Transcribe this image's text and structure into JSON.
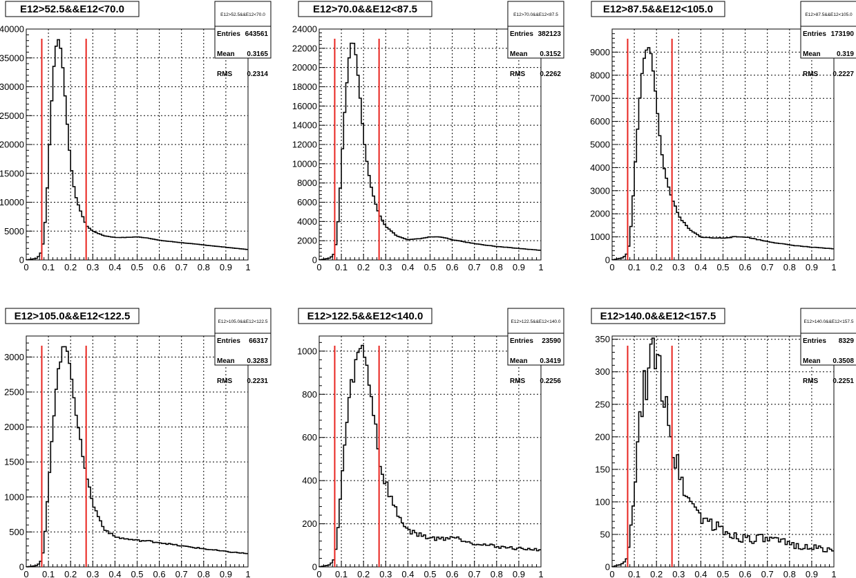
{
  "chart_data": [
    {
      "type": "histogram",
      "title": "E12>52.5&&E12<70.0",
      "stats": {
        "name": "E12>52.5&&E12<70.0",
        "entries_label": "Entries",
        "entries": "643561",
        "mean_label": "Mean",
        "mean": "0.3165",
        "rms_label": "RMS",
        "rms": "0.2314"
      },
      "xlim": [
        0,
        1
      ],
      "ylim": [
        0,
        40000
      ],
      "xticks": [
        "0",
        "0.1",
        "0.2",
        "0.3",
        "0.4",
        "0.5",
        "0.6",
        "0.7",
        "0.8",
        "0.9",
        "1"
      ],
      "yticks": [
        0,
        5000,
        10000,
        15000,
        20000,
        25000,
        30000,
        35000,
        40000
      ],
      "ytick_labels": [
        "0",
        "5000",
        "10000",
        "15000",
        "20000",
        "25000",
        "30000",
        "35000",
        "40000"
      ],
      "cut_lines_x": [
        0.07,
        0.27
      ],
      "grid": true,
      "keypoints": [
        [
          0.0,
          0
        ],
        [
          0.05,
          300
        ],
        [
          0.07,
          1500
        ],
        [
          0.08,
          4000
        ],
        [
          0.09,
          9000
        ],
        [
          0.1,
          16000
        ],
        [
          0.11,
          24000
        ],
        [
          0.12,
          31000
        ],
        [
          0.13,
          36000
        ],
        [
          0.14,
          38300
        ],
        [
          0.15,
          38000
        ],
        [
          0.16,
          35500
        ],
        [
          0.17,
          31000
        ],
        [
          0.18,
          26000
        ],
        [
          0.19,
          21000
        ],
        [
          0.2,
          17000
        ],
        [
          0.21,
          14000
        ],
        [
          0.22,
          11500
        ],
        [
          0.23,
          10000
        ],
        [
          0.25,
          8000
        ],
        [
          0.27,
          6000
        ],
        [
          0.3,
          5000
        ],
        [
          0.35,
          4200
        ],
        [
          0.4,
          3900
        ],
        [
          0.45,
          3900
        ],
        [
          0.5,
          4000
        ],
        [
          0.55,
          3800
        ],
        [
          0.6,
          3400
        ],
        [
          0.7,
          3000
        ],
        [
          0.8,
          2600
        ],
        [
          0.9,
          2200
        ],
        [
          1.0,
          1800
        ]
      ]
    },
    {
      "type": "histogram",
      "title": "E12>70.0&&E12<87.5",
      "stats": {
        "name": "E12>70.0&&E12<87.5",
        "entries_label": "Entries",
        "entries": "382123",
        "mean_label": "Mean",
        "mean": "0.3152",
        "rms_label": "RMS",
        "rms": "0.2262"
      },
      "xlim": [
        0,
        1
      ],
      "ylim": [
        0,
        24000
      ],
      "xticks": [
        "0",
        "0.1",
        "0.2",
        "0.3",
        "0.4",
        "0.5",
        "0.6",
        "0.7",
        "0.8",
        "0.9",
        "1"
      ],
      "yticks": [
        0,
        2000,
        4000,
        6000,
        8000,
        10000,
        12000,
        14000,
        16000,
        18000,
        20000,
        22000,
        24000
      ],
      "ytick_labels": [
        "0",
        "2000",
        "4000",
        "6000",
        "8000",
        "10000",
        "12000",
        "14000",
        "16000",
        "18000",
        "20000",
        "22000",
        "24000"
      ],
      "cut_lines_x": [
        0.07,
        0.27
      ],
      "grid": true,
      "keypoints": [
        [
          0.0,
          0
        ],
        [
          0.05,
          200
        ],
        [
          0.07,
          700
        ],
        [
          0.08,
          2500
        ],
        [
          0.09,
          5500
        ],
        [
          0.1,
          9500
        ],
        [
          0.11,
          13500
        ],
        [
          0.12,
          17000
        ],
        [
          0.13,
          20000
        ],
        [
          0.14,
          22000
        ],
        [
          0.15,
          23000
        ],
        [
          0.16,
          22200
        ],
        [
          0.17,
          20500
        ],
        [
          0.18,
          18000
        ],
        [
          0.19,
          15500
        ],
        [
          0.2,
          13000
        ],
        [
          0.21,
          11000
        ],
        [
          0.22,
          9500
        ],
        [
          0.23,
          8000
        ],
        [
          0.25,
          6200
        ],
        [
          0.27,
          4800
        ],
        [
          0.3,
          3500
        ],
        [
          0.35,
          2500
        ],
        [
          0.4,
          2100
        ],
        [
          0.45,
          2200
        ],
        [
          0.5,
          2400
        ],
        [
          0.55,
          2400
        ],
        [
          0.6,
          2100
        ],
        [
          0.7,
          1700
        ],
        [
          0.8,
          1400
        ],
        [
          0.9,
          1200
        ],
        [
          1.0,
          1000
        ]
      ]
    },
    {
      "type": "histogram",
      "title": "E12>87.5&&E12<105.0",
      "stats": {
        "name": "E12>87.5&&E12<105.0",
        "entries_label": "Entries",
        "entries": "173190",
        "mean_label": "Mean",
        "mean": "0.319",
        "rms_label": "RMS",
        "rms": "0.2227"
      },
      "xlim": [
        0,
        1
      ],
      "ylim": [
        0,
        10000
      ],
      "xticks": [
        "0",
        "0.1",
        "0.2",
        "0.3",
        "0.4",
        "0.5",
        "0.6",
        "0.7",
        "0.8",
        "0.9",
        "1"
      ],
      "yticks": [
        0,
        1000,
        2000,
        3000,
        4000,
        5000,
        6000,
        7000,
        8000,
        9000
      ],
      "ytick_labels": [
        "0",
        "1000",
        "2000",
        "3000",
        "4000",
        "5000",
        "6000",
        "7000",
        "8000",
        "9000"
      ],
      "cut_lines_x": [
        0.07,
        0.27
      ],
      "grid": true,
      "keypoints": [
        [
          0.0,
          0
        ],
        [
          0.05,
          100
        ],
        [
          0.07,
          300
        ],
        [
          0.08,
          900
        ],
        [
          0.09,
          2000
        ],
        [
          0.1,
          3500
        ],
        [
          0.11,
          5000
        ],
        [
          0.12,
          6400
        ],
        [
          0.13,
          7600
        ],
        [
          0.14,
          8400
        ],
        [
          0.15,
          9000
        ],
        [
          0.16,
          9300
        ],
        [
          0.17,
          9200
        ],
        [
          0.18,
          8700
        ],
        [
          0.19,
          7800
        ],
        [
          0.2,
          6800
        ],
        [
          0.21,
          5800
        ],
        [
          0.22,
          4900
        ],
        [
          0.23,
          4200
        ],
        [
          0.25,
          3300
        ],
        [
          0.27,
          2700
        ],
        [
          0.3,
          1900
        ],
        [
          0.35,
          1300
        ],
        [
          0.4,
          1000
        ],
        [
          0.45,
          950
        ],
        [
          0.5,
          950
        ],
        [
          0.55,
          1000
        ],
        [
          0.6,
          1000
        ],
        [
          0.65,
          900
        ],
        [
          0.7,
          800
        ],
        [
          0.8,
          650
        ],
        [
          0.9,
          550
        ],
        [
          1.0,
          480
        ]
      ]
    },
    {
      "type": "histogram",
      "title": "E12>105.0&&E12<122.5",
      "stats": {
        "name": "E12>105.0&&E12<122.5",
        "entries_label": "Entries",
        "entries": "66317",
        "mean_label": "Mean",
        "mean": "0.3283",
        "rms_label": "RMS",
        "rms": "0.2231"
      },
      "xlim": [
        0,
        1
      ],
      "ylim": [
        0,
        3300
      ],
      "xticks": [
        "0",
        "0.1",
        "0.2",
        "0.3",
        "0.4",
        "0.5",
        "0.6",
        "0.7",
        "0.8",
        "0.9",
        "1"
      ],
      "yticks": [
        0,
        500,
        1000,
        1500,
        2000,
        2500,
        3000
      ],
      "ytick_labels": [
        "0",
        "500",
        "1000",
        "1500",
        "2000",
        "2500",
        "3000"
      ],
      "cut_lines_x": [
        0.07,
        0.27
      ],
      "grid": true,
      "keypoints": [
        [
          0.0,
          0
        ],
        [
          0.05,
          20
        ],
        [
          0.07,
          100
        ],
        [
          0.08,
          300
        ],
        [
          0.09,
          700
        ],
        [
          0.1,
          1150
        ],
        [
          0.11,
          1600
        ],
        [
          0.12,
          2000
        ],
        [
          0.13,
          2400
        ],
        [
          0.14,
          2700
        ],
        [
          0.15,
          2900
        ],
        [
          0.16,
          3050
        ],
        [
          0.17,
          3130
        ],
        [
          0.18,
          3150
        ],
        [
          0.19,
          3050
        ],
        [
          0.2,
          2850
        ],
        [
          0.21,
          2600
        ],
        [
          0.22,
          2300
        ],
        [
          0.23,
          2050
        ],
        [
          0.25,
          1700
        ],
        [
          0.27,
          1350
        ],
        [
          0.3,
          900
        ],
        [
          0.35,
          550
        ],
        [
          0.4,
          430
        ],
        [
          0.45,
          400
        ],
        [
          0.5,
          380
        ],
        [
          0.55,
          370
        ],
        [
          0.6,
          350
        ],
        [
          0.7,
          300
        ],
        [
          0.8,
          260
        ],
        [
          0.9,
          220
        ],
        [
          1.0,
          190
        ]
      ]
    },
    {
      "type": "histogram",
      "title": "E12>122.5&&E12<140.0",
      "stats": {
        "name": "E12>122.5&&E12<140.0",
        "entries_label": "Entries",
        "entries": "23590",
        "mean_label": "Mean",
        "mean": "0.3419",
        "rms_label": "RMS",
        "rms": "0.2256"
      },
      "xlim": [
        0,
        1
      ],
      "ylim": [
        0,
        1070
      ],
      "xticks": [
        "0",
        "0.1",
        "0.2",
        "0.3",
        "0.4",
        "0.5",
        "0.6",
        "0.7",
        "0.8",
        "0.9",
        "1"
      ],
      "yticks": [
        0,
        200,
        400,
        600,
        800,
        1000
      ],
      "ytick_labels": [
        "0",
        "200",
        "400",
        "600",
        "800",
        "1000"
      ],
      "cut_lines_x": [
        0.07,
        0.27
      ],
      "grid": true,
      "keypoints": [
        [
          0.0,
          0
        ],
        [
          0.05,
          10
        ],
        [
          0.07,
          40
        ],
        [
          0.08,
          120
        ],
        [
          0.09,
          250
        ],
        [
          0.1,
          380
        ],
        [
          0.11,
          500
        ],
        [
          0.12,
          620
        ],
        [
          0.13,
          720
        ],
        [
          0.14,
          800
        ],
        [
          0.15,
          870
        ],
        [
          0.16,
          920
        ],
        [
          0.17,
          960
        ],
        [
          0.18,
          990
        ],
        [
          0.19,
          1010
        ],
        [
          0.2,
          1000
        ],
        [
          0.21,
          960
        ],
        [
          0.22,
          900
        ],
        [
          0.23,
          830
        ],
        [
          0.25,
          680
        ],
        [
          0.27,
          530
        ],
        [
          0.28,
          440
        ],
        [
          0.3,
          390
        ],
        [
          0.33,
          300
        ],
        [
          0.35,
          250
        ],
        [
          0.4,
          170
        ],
        [
          0.45,
          150
        ],
        [
          0.5,
          135
        ],
        [
          0.55,
          130
        ],
        [
          0.6,
          140
        ],
        [
          0.65,
          125
        ],
        [
          0.7,
          110
        ],
        [
          0.8,
          95
        ],
        [
          0.9,
          85
        ],
        [
          1.0,
          80
        ]
      ]
    },
    {
      "type": "histogram",
      "title": "E12>140.0&&E12<157.5",
      "stats": {
        "name": "E12>140.0&&E12<157.5",
        "entries_label": "Entries",
        "entries": "8329",
        "mean_label": "Mean",
        "mean": "0.3508",
        "rms_label": "RMS",
        "rms": "0.2251"
      },
      "xlim": [
        0,
        1
      ],
      "ylim": [
        0,
        355
      ],
      "xticks": [
        "0",
        "0.1",
        "0.2",
        "0.3",
        "0.4",
        "0.5",
        "0.6",
        "0.7",
        "0.8",
        "0.9",
        "1"
      ],
      "yticks": [
        0,
        50,
        100,
        150,
        200,
        250,
        300,
        350
      ],
      "ytick_labels": [
        "0",
        "50",
        "100",
        "150",
        "200",
        "250",
        "300",
        "350"
      ],
      "cut_lines_x": [
        0.07,
        0.27
      ],
      "grid": true,
      "keypoints": [
        [
          0.0,
          0
        ],
        [
          0.05,
          5
        ],
        [
          0.07,
          15
        ],
        [
          0.08,
          40
        ],
        [
          0.09,
          80
        ],
        [
          0.1,
          120
        ],
        [
          0.11,
          160
        ],
        [
          0.12,
          200
        ],
        [
          0.13,
          230
        ],
        [
          0.14,
          260
        ],
        [
          0.15,
          280
        ],
        [
          0.16,
          300
        ],
        [
          0.17,
          315
        ],
        [
          0.18,
          320
        ],
        [
          0.19,
          325
        ],
        [
          0.2,
          320
        ],
        [
          0.21,
          300
        ],
        [
          0.22,
          290
        ],
        [
          0.23,
          280
        ],
        [
          0.25,
          250
        ],
        [
          0.27,
          200
        ],
        [
          0.28,
          170
        ],
        [
          0.3,
          145
        ],
        [
          0.32,
          130
        ],
        [
          0.35,
          100
        ],
        [
          0.4,
          80
        ],
        [
          0.45,
          65
        ],
        [
          0.5,
          55
        ],
        [
          0.55,
          48
        ],
        [
          0.6,
          45
        ],
        [
          0.7,
          42
        ],
        [
          0.8,
          35
        ],
        [
          0.9,
          30
        ],
        [
          1.0,
          25
        ]
      ]
    }
  ],
  "colors": {
    "histogram_line": "#000000",
    "cut_line": "#e8231e",
    "grid": "#000000",
    "background": "#ffffff"
  }
}
